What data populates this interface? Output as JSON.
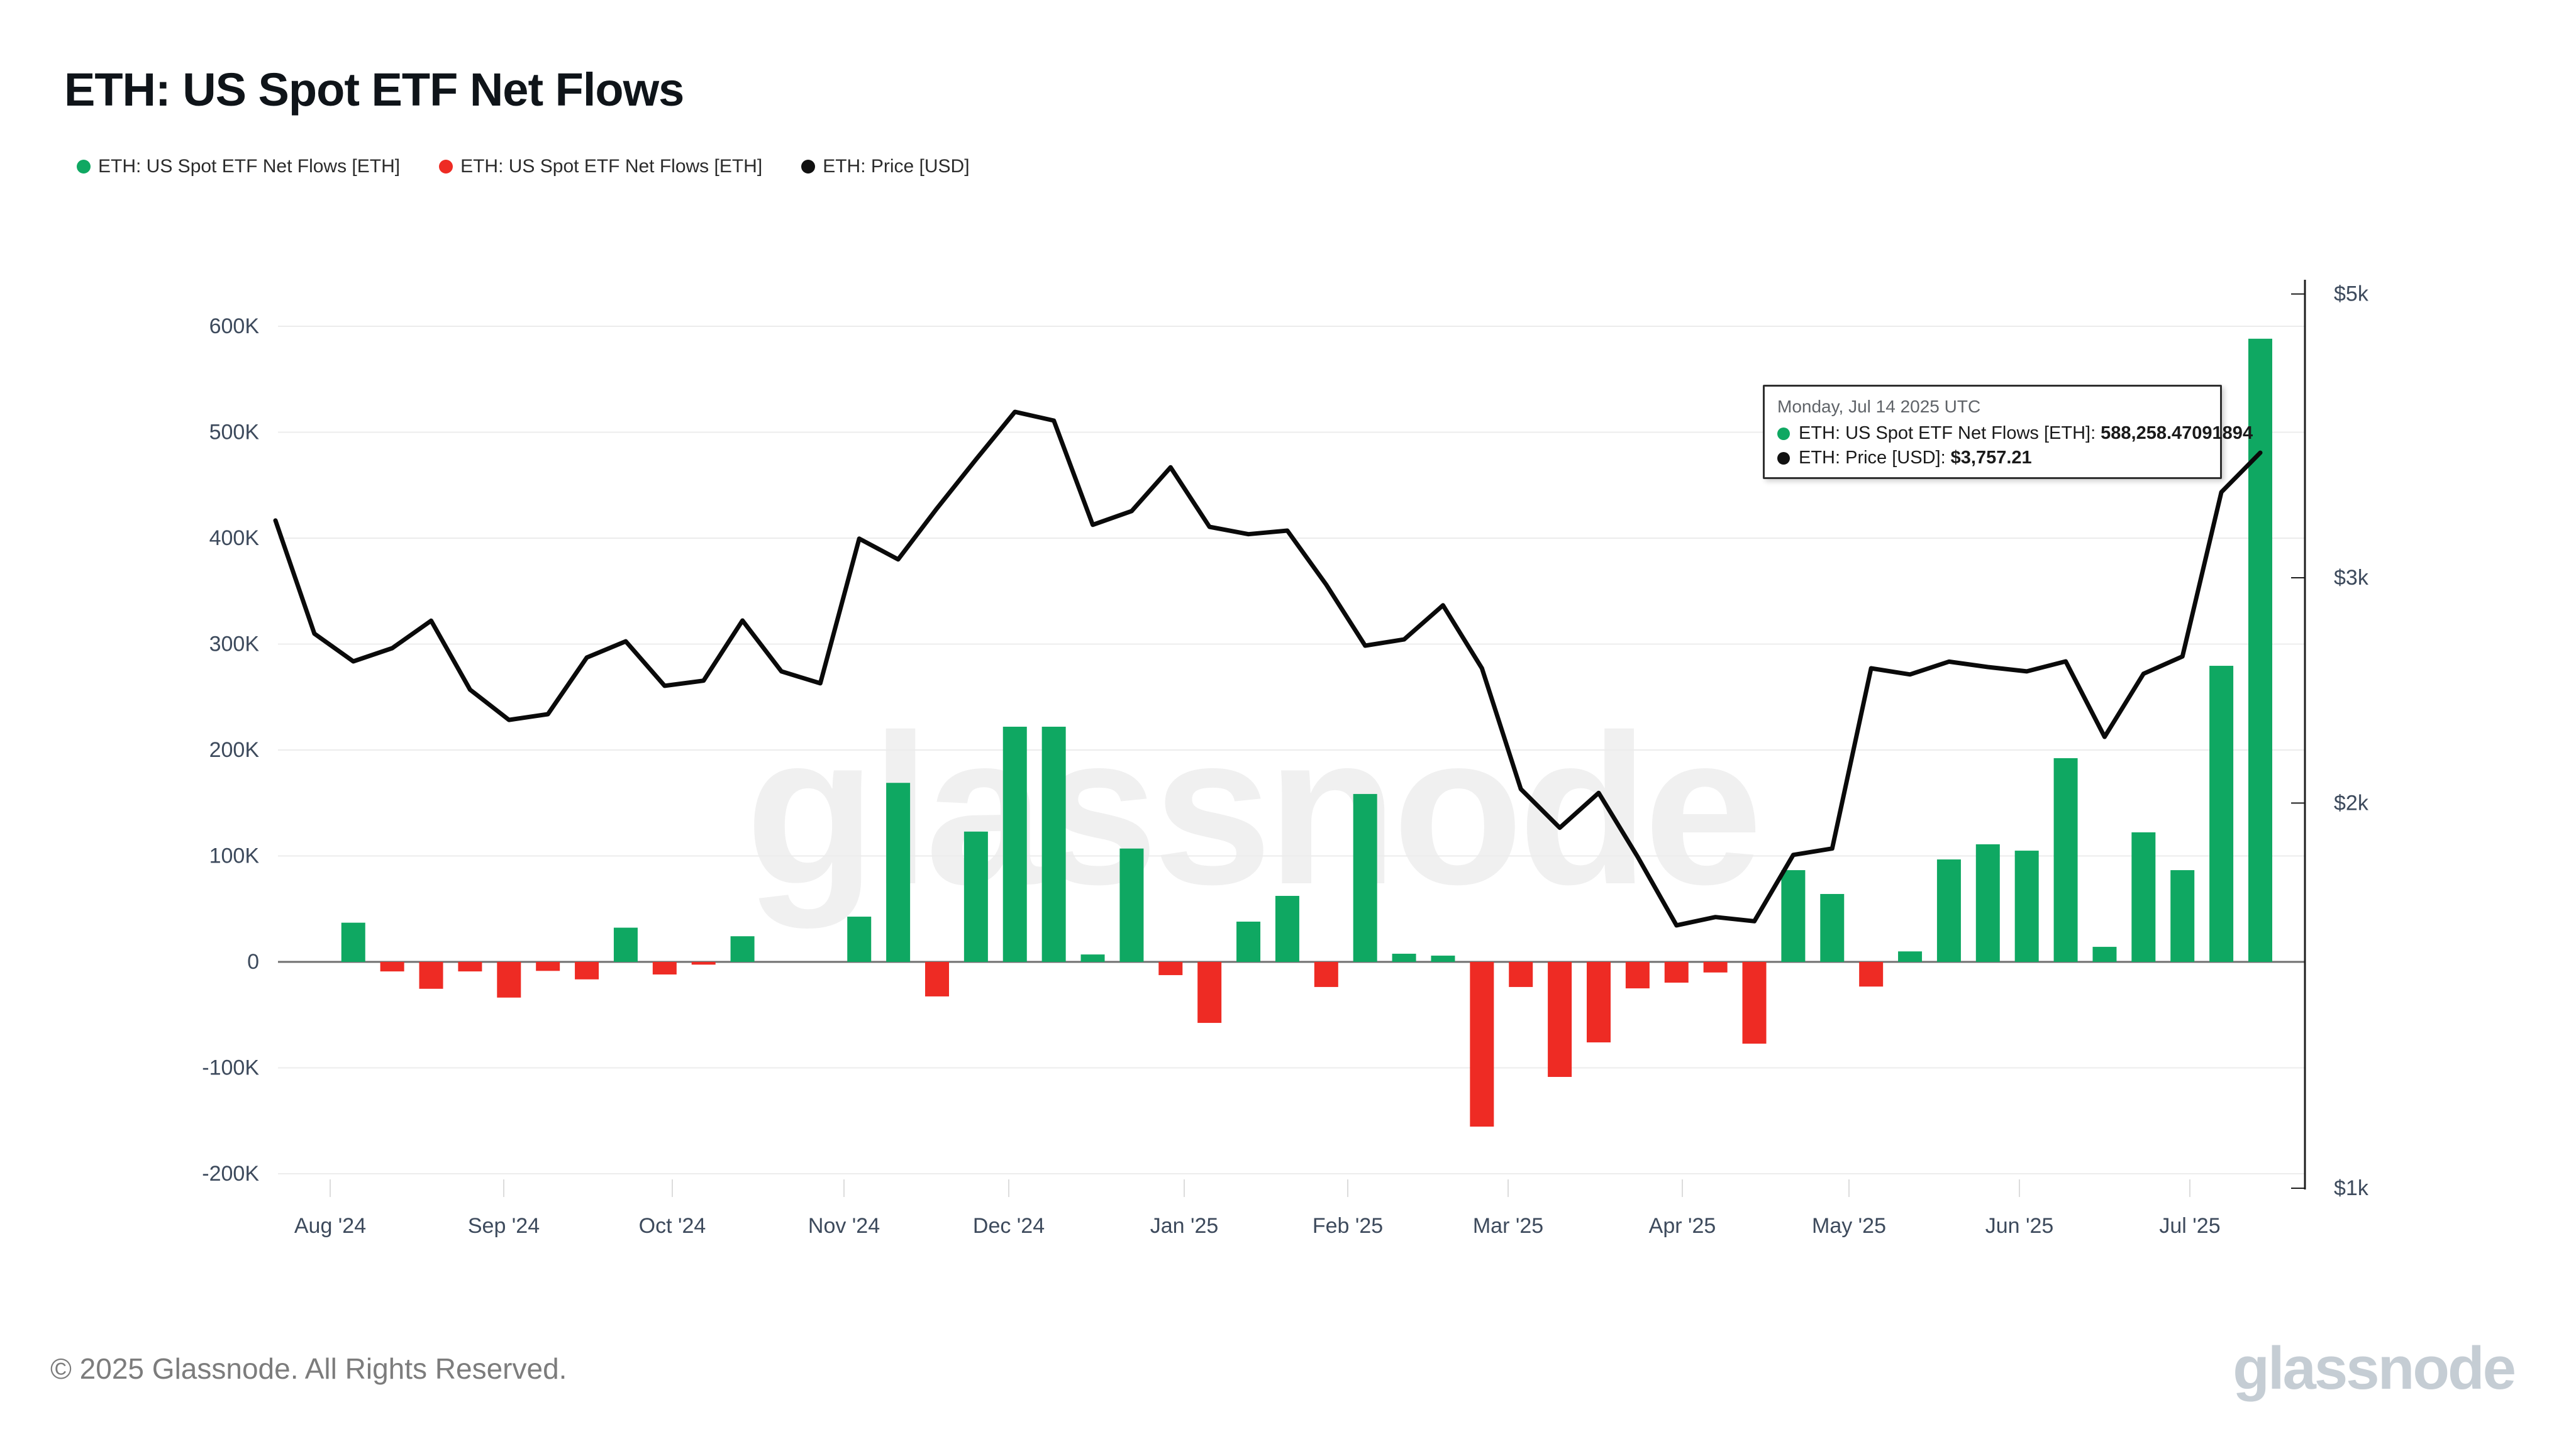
{
  "title": "ETH: US Spot ETF Net Flows",
  "legend": {
    "items": [
      {
        "label": "ETH: US Spot ETF Net Flows [ETH]",
        "color": "#0fa862"
      },
      {
        "label": "ETH: US Spot ETF Net Flows [ETH]",
        "color": "#ee2b24"
      },
      {
        "label": "ETH: Price [USD]",
        "color": "#111111"
      }
    ]
  },
  "watermark": "glassnode",
  "tooltip": {
    "date": "Monday, Jul 14 2025 UTC",
    "rows": [
      {
        "label": "ETH: US Spot ETF Net Flows [ETH]:",
        "value": "588,258.47091894",
        "color": "#0fa862"
      },
      {
        "label": "ETH: Price [USD]:",
        "value": "$3,757.21",
        "color": "#111111"
      }
    ]
  },
  "footer": {
    "copyright": "© 2025 Glassnode. All Rights Reserved.",
    "brand": "glassnode"
  },
  "chart_data": {
    "type": "bar+line",
    "title": "ETH: US Spot ETF Net Flows",
    "x_axis": {
      "labels": [
        "Aug '24",
        "Sep '24",
        "Oct '24",
        "Nov '24",
        "Dec '24",
        "Jan '25",
        "Feb '25",
        "Mar '25",
        "Apr '25",
        "May '25",
        "Jun '25",
        "Jul '25"
      ]
    },
    "y_axis_left": {
      "unit": "ETH",
      "ticks": [
        {
          "label": "600K",
          "value": 600000
        },
        {
          "label": "500K",
          "value": 500000
        },
        {
          "label": "400K",
          "value": 400000
        },
        {
          "label": "300K",
          "value": 300000
        },
        {
          "label": "200K",
          "value": 200000
        },
        {
          "label": "100K",
          "value": 100000
        },
        {
          "label": "0",
          "value": 0
        },
        {
          "label": "-100K",
          "value": -100000
        },
        {
          "label": "-200K",
          "value": -200000
        }
      ],
      "range": [
        -200000,
        600000
      ]
    },
    "y_axis_right": {
      "unit": "USD",
      "scale": "log",
      "ticks": [
        {
          "label": "$5k",
          "value": 5000
        },
        {
          "label": "$3k",
          "value": 3000
        },
        {
          "label": "$2k",
          "value": 2000
        },
        {
          "label": "$1k",
          "value": 1000
        }
      ]
    },
    "series": [
      {
        "name": "ETH: US Spot ETF Net Flows [ETH]",
        "type": "bar",
        "unit": "ETH",
        "positive_color": "#0fa862",
        "negative_color": "#ee2b24",
        "dates": [
          "2024-08-05",
          "2024-08-12",
          "2024-08-19",
          "2024-08-26",
          "2024-09-02",
          "2024-09-09",
          "2024-09-16",
          "2024-09-23",
          "2024-09-30",
          "2024-10-07",
          "2024-10-14",
          "2024-10-21",
          "2024-10-28",
          "2024-11-04",
          "2024-11-11",
          "2024-11-18",
          "2024-11-25",
          "2024-12-02",
          "2024-12-09",
          "2024-12-16",
          "2024-12-23",
          "2024-12-30",
          "2025-01-06",
          "2025-01-13",
          "2025-01-20",
          "2025-01-27",
          "2025-02-03",
          "2025-02-10",
          "2025-02-17",
          "2025-02-24",
          "2025-03-03",
          "2025-03-10",
          "2025-03-17",
          "2025-03-24",
          "2025-03-31",
          "2025-04-07",
          "2025-04-14",
          "2025-04-21",
          "2025-04-28",
          "2025-05-05",
          "2025-05-12",
          "2025-05-19",
          "2025-05-26",
          "2025-06-02",
          "2025-06-09",
          "2025-06-16",
          "2025-06-23",
          "2025-06-30",
          "2025-07-07",
          "2025-07-14"
        ],
        "values": [
          37000,
          -9000,
          -25400,
          -9000,
          -33700,
          -8500,
          -16500,
          32300,
          -11900,
          -2600,
          24200,
          0,
          0,
          42700,
          169000,
          -32600,
          123000,
          222000,
          222000,
          7000,
          107000,
          -12500,
          -57600,
          38000,
          62300,
          -23700,
          158500,
          7700,
          5900,
          -155500,
          -23700,
          -108600,
          -76000,
          -25000,
          -19600,
          -10000,
          -77200,
          86600,
          64100,
          -23300,
          9900,
          96700,
          111000,
          105000,
          192300,
          14200,
          122300,
          86600,
          279500,
          588258.47091894
        ]
      },
      {
        "name": "ETH: Price [USD]",
        "type": "line",
        "unit": "USD",
        "color": "#0a0a0a",
        "dates": [
          "2024-07-22",
          "2024-07-29",
          "2024-08-05",
          "2024-08-12",
          "2024-08-19",
          "2024-08-26",
          "2024-09-02",
          "2024-09-09",
          "2024-09-16",
          "2024-09-23",
          "2024-09-30",
          "2024-10-07",
          "2024-10-14",
          "2024-10-21",
          "2024-10-28",
          "2024-11-04",
          "2024-11-11",
          "2024-11-18",
          "2024-11-25",
          "2024-12-02",
          "2024-12-09",
          "2024-12-16",
          "2024-12-23",
          "2024-12-30",
          "2025-01-06",
          "2025-01-13",
          "2025-01-20",
          "2025-01-27",
          "2025-02-03",
          "2025-02-10",
          "2025-02-17",
          "2025-02-24",
          "2025-03-03",
          "2025-03-10",
          "2025-03-17",
          "2025-03-24",
          "2025-03-31",
          "2025-04-07",
          "2025-04-14",
          "2025-04-21",
          "2025-04-28",
          "2025-05-05",
          "2025-05-12",
          "2025-05-19",
          "2025-05-26",
          "2025-06-02",
          "2025-06-09",
          "2025-06-16",
          "2025-06-23",
          "2025-06-30",
          "2025-07-07",
          "2025-07-14"
        ],
        "values": [
          3326,
          2713,
          2581,
          2643,
          2777,
          2453,
          2323,
          2347,
          2599,
          2676,
          2470,
          2493,
          2778,
          2535,
          2481,
          3219,
          3101,
          3400,
          3712,
          4044,
          3981,
          3300,
          3383,
          3660,
          3288,
          3245,
          3266,
          2963,
          2655,
          2685,
          2855,
          2549,
          2051,
          1913,
          2037,
          1816,
          1605,
          1629,
          1617,
          1822,
          1843,
          2549,
          2521,
          2580,
          2555,
          2535,
          2581,
          2253,
          2524,
          2604,
          3500,
          3757.21
        ]
      }
    ],
    "annotations": {
      "hovered_point": {
        "date": "2025-07-14",
        "flow_eth": 588258.47091894,
        "price_usd": 3757.21
      }
    },
    "grid": true,
    "legend_position": "top-left"
  }
}
